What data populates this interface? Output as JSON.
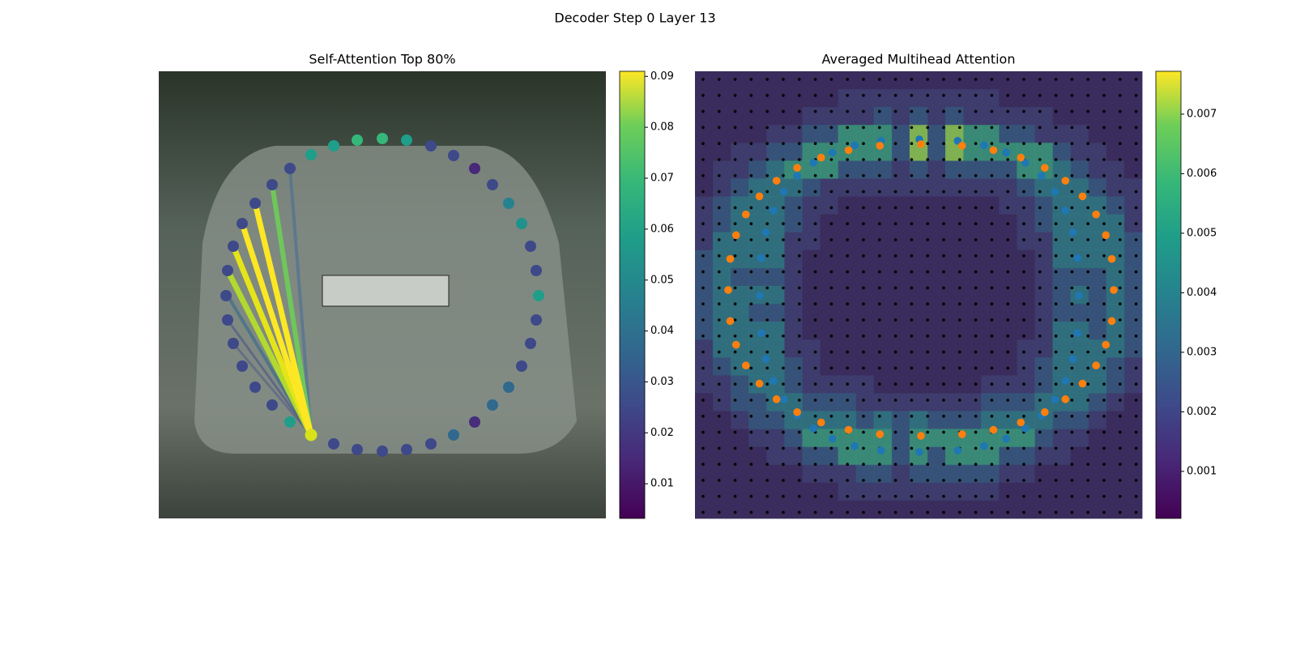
{
  "chart_data": [
    {
      "type": "colorbar",
      "title": "Self-Attention Top 80%",
      "clim": [
        0.0032,
        0.091
      ],
      "ticks": [
        0.01,
        0.02,
        0.03,
        0.04,
        0.05,
        0.06,
        0.07,
        0.08,
        0.09
      ],
      "colormap": "viridis"
    },
    {
      "type": "colorbar",
      "title": "Averaged Multihead Attention",
      "clim": [
        0.00021,
        0.00772
      ],
      "ticks": [
        0.001,
        0.002,
        0.003,
        0.004,
        0.005,
        0.006,
        0.007
      ],
      "colormap": "viridis"
    }
  ],
  "suptitle": "Decoder Step 0 Layer 13"
}
